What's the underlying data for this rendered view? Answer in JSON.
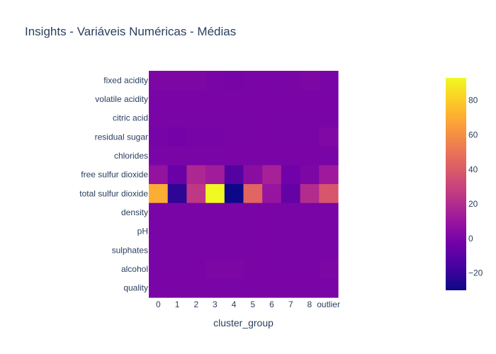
{
  "chart_data": {
    "type": "heatmap",
    "title": "Insights - Variáveis Numéricas - Médias",
    "xlabel": "cluster_group",
    "ylabel": "",
    "x": [
      "0",
      "1",
      "2",
      "3",
      "4",
      "5",
      "6",
      "7",
      "8",
      "outlier"
    ],
    "y": [
      "fixed acidity",
      "volatile acidity",
      "citric acid",
      "residual sugar",
      "chlorides",
      "free sulfur dioxide",
      "total sulfur dioxide",
      "density",
      "pH",
      "sulphates",
      "alcohol",
      "quality"
    ],
    "z": [
      [
        1,
        1,
        1,
        0,
        -1,
        0,
        0,
        0,
        1,
        0
      ],
      [
        0,
        0,
        0,
        0,
        0,
        0,
        0,
        0,
        0,
        0
      ],
      [
        0,
        0,
        0,
        0,
        0,
        0,
        0,
        0,
        0,
        0
      ],
      [
        -1,
        -2,
        -1,
        -1,
        0,
        0,
        0,
        0,
        0,
        2
      ],
      [
        0,
        0,
        0,
        0,
        0,
        0,
        0,
        0,
        0,
        0
      ],
      [
        8,
        -5,
        18,
        13,
        -12,
        5,
        15,
        -3,
        1,
        12
      ],
      [
        70,
        -22,
        25,
        93,
        -30,
        44,
        9,
        -7,
        20,
        38
      ],
      [
        0,
        0,
        0,
        0,
        0,
        0,
        0,
        0,
        0,
        0
      ],
      [
        0,
        0,
        0,
        0,
        0,
        0,
        0,
        0,
        0,
        0
      ],
      [
        0,
        0,
        0,
        0,
        0,
        0,
        0,
        0,
        0,
        0
      ],
      [
        0,
        0,
        0,
        1,
        1,
        0,
        0,
        0,
        0,
        1
      ],
      [
        0,
        0,
        0,
        0,
        0,
        0,
        0,
        0,
        0,
        0
      ]
    ],
    "zmin": -30,
    "zmax": 93,
    "colorscale": "Plasma",
    "colorbar_ticks": [
      -20,
      0,
      20,
      40,
      60,
      80
    ],
    "colorbar_tick_labels": [
      "−20",
      "0",
      "20",
      "40",
      "60",
      "80"
    ]
  }
}
